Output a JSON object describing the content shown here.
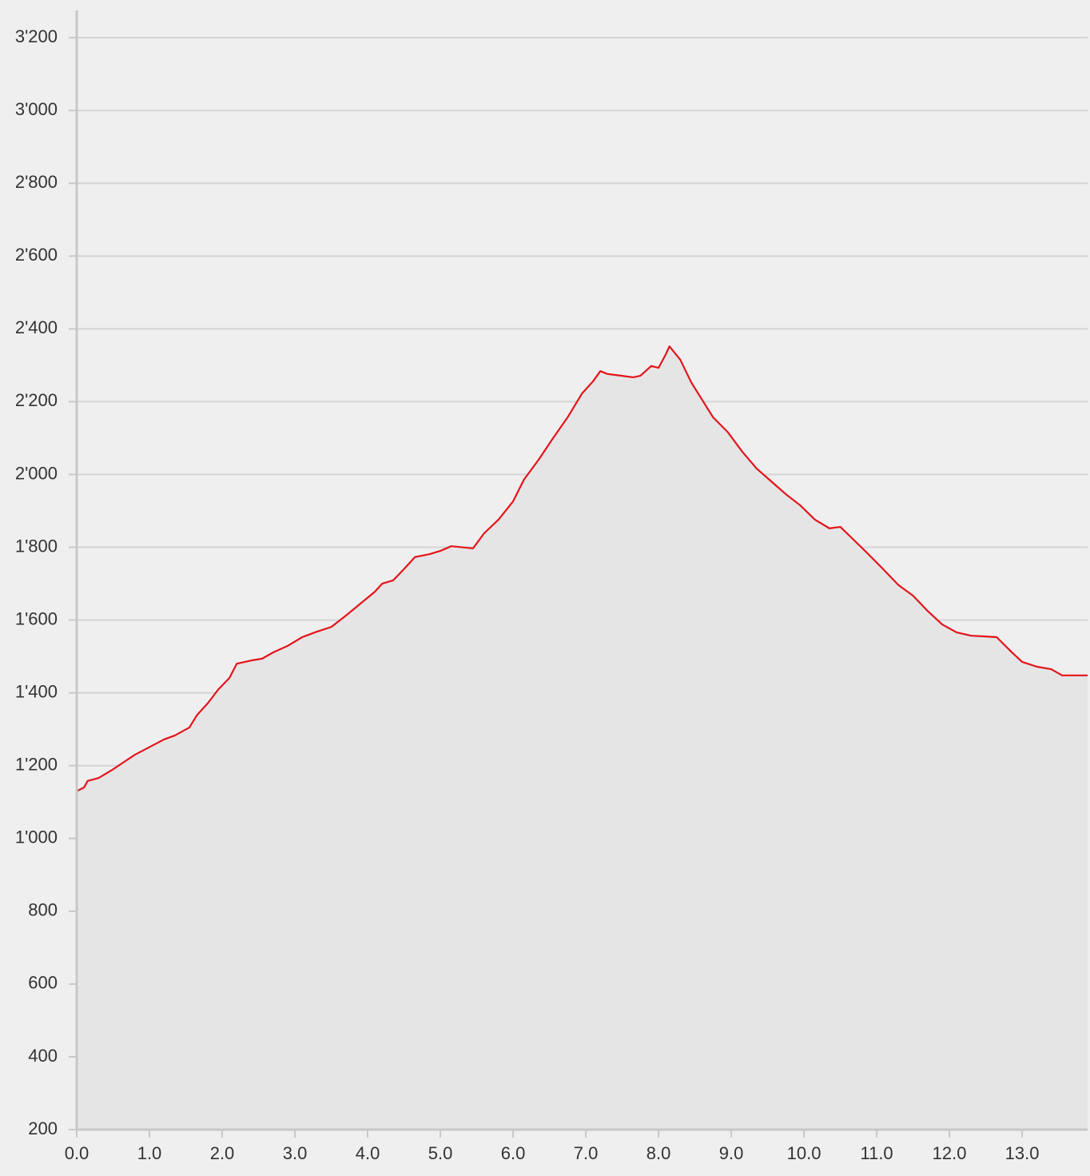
{
  "chart_data": {
    "type": "area",
    "x": [
      0.0,
      0.1,
      0.15,
      0.3,
      0.5,
      0.8,
      1.2,
      1.35,
      1.45,
      1.55,
      1.65,
      1.8,
      1.95,
      2.1,
      2.2,
      2.4,
      2.55,
      2.7,
      2.9,
      3.1,
      3.3,
      3.5,
      3.7,
      3.9,
      4.1,
      4.2,
      4.35,
      4.5,
      4.65,
      4.85,
      5.0,
      5.15,
      5.45,
      5.6,
      5.8,
      6.0,
      6.15,
      6.35,
      6.55,
      6.75,
      6.95,
      7.1,
      7.2,
      7.3,
      7.5,
      7.65,
      7.75,
      7.9,
      8.0,
      8.1,
      8.15,
      8.3,
      8.45,
      8.6,
      8.75,
      8.95,
      9.15,
      9.35,
      9.55,
      9.75,
      9.95,
      10.15,
      10.35,
      10.5,
      10.65,
      10.85,
      11.05,
      11.3,
      11.5,
      11.7,
      11.9,
      12.1,
      12.3,
      12.5,
      12.65,
      12.85,
      13.0,
      13.2,
      13.4,
      13.55,
      13.9
    ],
    "values": [
      1130,
      1140,
      1158,
      1166,
      1190,
      1230,
      1272,
      1283,
      1294,
      1305,
      1338,
      1371,
      1410,
      1441,
      1480,
      1489,
      1494,
      1511,
      1529,
      1553,
      1568,
      1581,
      1612,
      1645,
      1678,
      1700,
      1709,
      1740,
      1773,
      1781,
      1790,
      1803,
      1797,
      1838,
      1876,
      1926,
      1986,
      2040,
      2100,
      2157,
      2223,
      2256,
      2284,
      2276,
      2271,
      2267,
      2271,
      2298,
      2293,
      2330,
      2352,
      2315,
      2253,
      2205,
      2157,
      2117,
      2063,
      2016,
      1981,
      1946,
      1915,
      1876,
      1852,
      1856,
      1827,
      1788,
      1748,
      1696,
      1667,
      1625,
      1588,
      1566,
      1557,
      1555,
      1553,
      1513,
      1485,
      1472,
      1465,
      1448,
      1448
    ],
    "color": "#e3141b",
    "fill": "#e5e5e5",
    "xlim": [
      0,
      13.9
    ],
    "ylim": [
      200,
      3275
    ],
    "xticks": [
      {
        "value": 0,
        "label": "0.0"
      },
      {
        "value": 1,
        "label": "1.0"
      },
      {
        "value": 2,
        "label": "2.0"
      },
      {
        "value": 3,
        "label": "3.0"
      },
      {
        "value": 4,
        "label": "4.0"
      },
      {
        "value": 5,
        "label": "5.0"
      },
      {
        "value": 6,
        "label": "6.0"
      },
      {
        "value": 7,
        "label": "7.0"
      },
      {
        "value": 8,
        "label": "8.0"
      },
      {
        "value": 9,
        "label": "9.0"
      },
      {
        "value": 10,
        "label": "10.0"
      },
      {
        "value": 11,
        "label": "11.0"
      },
      {
        "value": 12,
        "label": "12.0"
      },
      {
        "value": 13,
        "label": "13.0"
      }
    ],
    "yticks": [
      200,
      400,
      600,
      800,
      {
        "value": 1000,
        "label": "1'000"
      },
      {
        "value": 1200,
        "label": "1'200"
      },
      {
        "value": 1400,
        "label": "1'400"
      },
      {
        "value": 1600,
        "label": "1'600"
      },
      {
        "value": 1800,
        "label": "1'800"
      },
      {
        "value": 2000,
        "label": "2'000"
      },
      {
        "value": 2200,
        "label": "2'200"
      },
      {
        "value": 2400,
        "label": "2'400"
      },
      {
        "value": 2600,
        "label": "2'600"
      },
      {
        "value": 2800,
        "label": "2'800"
      },
      {
        "value": 3000,
        "label": "3'000"
      },
      {
        "value": 3200,
        "label": "3'200"
      }
    ],
    "grid": true
  }
}
